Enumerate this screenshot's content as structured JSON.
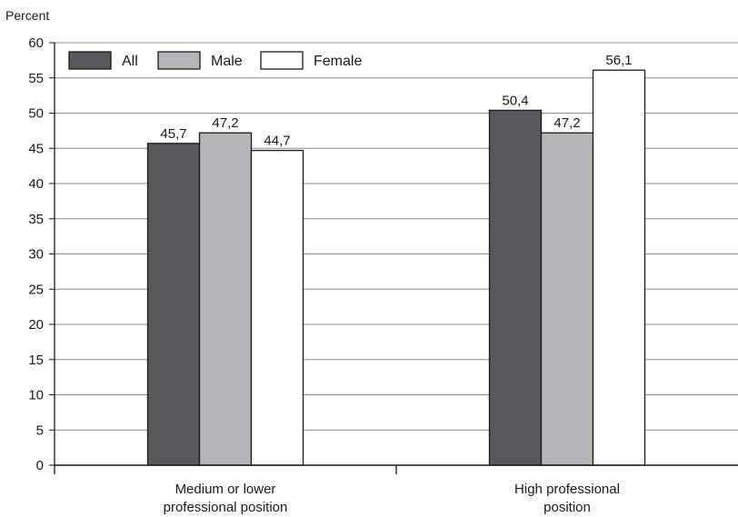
{
  "chart_data": {
    "type": "bar",
    "ylabel": "Percent",
    "ylim": [
      0,
      60
    ],
    "ytick_step": 5,
    "yticks": [
      "0",
      "5",
      "10",
      "15",
      "20",
      "25",
      "30",
      "35",
      "40",
      "45",
      "50",
      "55",
      "60"
    ],
    "grid": true,
    "legend_position": "top-left",
    "categories": [
      [
        "Medium or lower",
        "professional position"
      ],
      [
        "High professional",
        "position"
      ]
    ],
    "series": [
      {
        "name": "All",
        "color": "#58585d",
        "values": [
          45.7,
          50.4
        ],
        "labels": [
          "45,7",
          "50,4"
        ]
      },
      {
        "name": "Male",
        "color": "#b4b5b8",
        "values": [
          47.2,
          47.2
        ],
        "labels": [
          "47,2",
          "47,2"
        ]
      },
      {
        "name": "Female",
        "color": "#ffffff",
        "values": [
          44.7,
          56.1
        ],
        "labels": [
          "44,7",
          "56,1"
        ]
      }
    ]
  }
}
